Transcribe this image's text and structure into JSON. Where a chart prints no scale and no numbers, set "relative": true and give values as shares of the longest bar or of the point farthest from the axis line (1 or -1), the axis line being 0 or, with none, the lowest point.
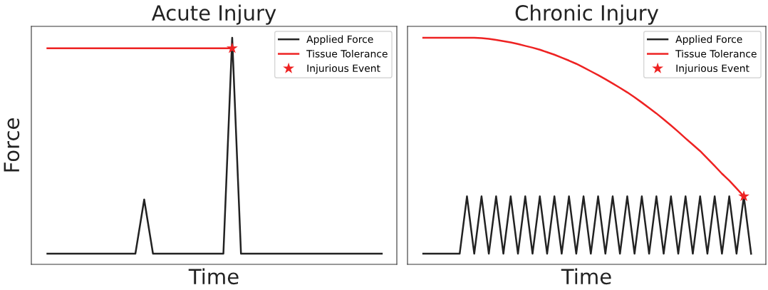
{
  "chart_data": [
    {
      "type": "line",
      "title": "Acute Injury",
      "xlabel": "Time",
      "ylabel": "Force",
      "relative": true,
      "legend": "top right",
      "tick_labels": false,
      "categories": [
        null,
        null,
        null,
        null,
        null,
        null,
        null,
        null,
        null,
        null,
        null,
        null,
        null,
        null,
        null,
        null,
        null,
        null,
        null,
        null,
        null,
        null,
        null,
        null,
        null,
        null,
        null,
        null,
        null,
        null,
        null,
        null,
        null,
        null,
        null,
        null,
        null,
        null,
        null
      ],
      "series": [
        {
          "name": "Applied Force",
          "color": "#222222",
          "values": [
            0.047,
            0.047,
            0.047,
            0.047,
            0.047,
            0.047,
            0.047,
            0.047,
            0.047,
            0.047,
            0.047,
            0.286,
            0.047,
            0.047,
            0.047,
            0.047,
            0.047,
            0.047,
            0.047,
            0.047,
            0.047,
            1.0,
            0.047,
            0.047,
            0.047,
            0.047,
            0.047,
            0.047,
            0.047,
            0.047,
            0.047,
            0.047,
            0.047,
            0.047,
            0.047,
            0.047,
            0.047,
            0.047,
            0.047
          ]
        },
        {
          "name": "Tissue Tolerance",
          "color": "#ee2222",
          "values": [
            0.953,
            0.953,
            0.953,
            0.953,
            0.953,
            0.953,
            0.953,
            0.953,
            0.953,
            0.953,
            0.953,
            0.953,
            0.953,
            0.953,
            0.953,
            0.953,
            0.953,
            0.953,
            0.953,
            0.953,
            0.953,
            0.953,
            null,
            null,
            null,
            null,
            null,
            null,
            null,
            null,
            null,
            null,
            null,
            null,
            null,
            null,
            null,
            null,
            null
          ]
        },
        {
          "name": "Injurious Event",
          "type": "line",
          "marker": "star",
          "color": "#ee2222",
          "values": [
            null,
            null,
            null,
            null,
            null,
            null,
            null,
            null,
            null,
            null,
            null,
            null,
            null,
            null,
            null,
            null,
            null,
            null,
            null,
            null,
            null,
            0.953,
            null,
            null,
            null,
            null,
            null,
            null,
            null,
            null,
            null,
            null,
            null,
            null,
            null,
            null,
            null,
            null,
            null
          ]
        }
      ]
    },
    {
      "type": "line",
      "title": "Chronic Injury",
      "xlabel": "Time",
      "relative": true,
      "legend": "top right",
      "tick_labels": false,
      "categories": [
        null,
        null,
        null,
        null,
        null,
        null,
        null,
        null,
        null,
        null,
        null,
        null,
        null,
        null,
        null,
        null,
        null,
        null,
        null,
        null,
        null,
        null,
        null,
        null,
        null,
        null,
        null,
        null,
        null,
        null,
        null,
        null,
        null,
        null,
        null,
        null,
        null,
        null,
        null,
        null,
        null,
        null,
        null,
        null,
        null,
        null
      ],
      "series": [
        {
          "name": "Applied Force",
          "color": "#222222",
          "values": [
            0.047,
            0.047,
            0.047,
            0.047,
            0.047,
            0.047,
            0.3,
            0.047,
            0.3,
            0.047,
            0.3,
            0.047,
            0.3,
            0.047,
            0.3,
            0.047,
            0.3,
            0.047,
            0.3,
            0.047,
            0.3,
            0.047,
            0.3,
            0.047,
            0.3,
            0.047,
            0.3,
            0.047,
            0.3,
            0.047,
            0.3,
            0.047,
            0.3,
            0.047,
            0.3,
            0.047,
            0.3,
            0.047,
            0.3,
            0.047,
            0.3,
            0.047,
            0.3,
            0.047,
            0.3,
            0.047
          ]
        },
        {
          "name": "Tissue Tolerance",
          "color": "#ee2222",
          "values": [
            1.0,
            1.0,
            1.0,
            1.0,
            1.0,
            1.0,
            1.0,
            1.0,
            0.998,
            0.995,
            0.99,
            0.985,
            0.979,
            0.972,
            0.964,
            0.956,
            0.947,
            0.936,
            0.925,
            0.912,
            0.899,
            0.885,
            0.869,
            0.852,
            0.835,
            0.817,
            0.798,
            0.779,
            0.759,
            0.737,
            0.714,
            0.69,
            0.666,
            0.64,
            0.613,
            0.585,
            0.556,
            0.528,
            0.5,
            0.467,
            0.434,
            0.4,
            0.37,
            0.335,
            0.3,
            null
          ]
        },
        {
          "name": "Injurious Event",
          "type": "line",
          "marker": "star",
          "color": "#ee2222",
          "values": [
            null,
            null,
            null,
            null,
            null,
            null,
            null,
            null,
            null,
            null,
            null,
            null,
            null,
            null,
            null,
            null,
            null,
            null,
            null,
            null,
            null,
            null,
            null,
            null,
            null,
            null,
            null,
            null,
            null,
            null,
            null,
            null,
            null,
            null,
            null,
            null,
            null,
            null,
            null,
            null,
            null,
            null,
            null,
            null,
            0.3,
            null
          ]
        }
      ]
    }
  ]
}
